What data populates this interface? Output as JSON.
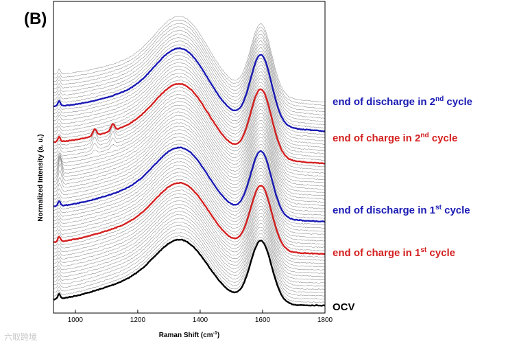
{
  "panel_label": "(B)",
  "chart_data": {
    "type": "line",
    "title": "",
    "xlabel": "Raman Shift (cm",
    "xlabel_sup": "-1",
    "xlabel_end": ")",
    "ylabel": "Normalized Intensity (a. u.)",
    "xlim": [
      930,
      1800
    ],
    "x_ticks": [
      1000,
      1200,
      1400,
      1600,
      1800
    ],
    "num_spectra": 64,
    "d_band_cm": 1345,
    "g_band_cm": 1595,
    "highlighted_series": [
      {
        "name": "OCV",
        "index": 0,
        "color": "#000000"
      },
      {
        "name": "end of charge in 1st cycle",
        "index": 16,
        "color": "#d42020"
      },
      {
        "name": "end of discharge in 1st cycle",
        "index": 26,
        "color": "#1a1ab4"
      },
      {
        "name": "end of charge in 2nd cycle",
        "index": 44,
        "color": "#d42020"
      },
      {
        "name": "end of discharge in 2nd cycle",
        "index": 54,
        "color": "#1a1ab4"
      }
    ],
    "annotations": [
      {
        "pre": "end of discharge in 2",
        "sup": "nd",
        "post": " cycle",
        "color": "#1a1ab4"
      },
      {
        "pre": "end of charge in 2",
        "sup": "nd",
        "post": " cycle",
        "color": "#d42020"
      },
      {
        "pre": "end of discharge in 1",
        "sup": "st",
        "post": " cycle",
        "color": "#1a1ab4"
      },
      {
        "pre": "end of charge in 1",
        "sup": "st",
        "post": " cycle",
        "color": "#d42020"
      },
      {
        "pre": "OCV",
        "sup": "",
        "post": "",
        "color": "#000000"
      }
    ]
  },
  "watermark": "六取跨境"
}
